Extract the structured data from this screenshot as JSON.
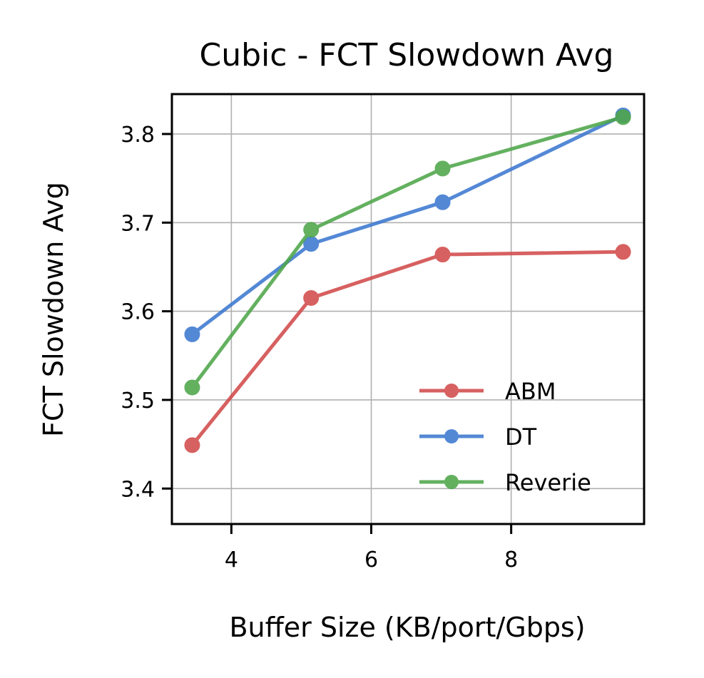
{
  "chart_data": {
    "type": "line",
    "title": "Cubic - FCT Slowdown Avg",
    "xlabel": "Buffer Size (KB/port/Gbps)",
    "ylabel": "FCT Slowdown Avg",
    "xlim": [
      3.15,
      9.9
    ],
    "ylim": [
      3.36,
      3.845
    ],
    "xticks": [
      4,
      6,
      8
    ],
    "yticks": [
      3.4,
      3.5,
      3.6,
      3.7,
      3.8
    ],
    "xtick_labels": [
      "4",
      "6",
      "8"
    ],
    "ytick_labels": [
      "3.4",
      "3.5",
      "3.6",
      "3.7",
      "3.8"
    ],
    "grid": true,
    "legend_position": "lower-right",
    "series": [
      {
        "name": "ABM",
        "color": "#d24b4b",
        "x": [
          3.44,
          5.14,
          7.02,
          9.6
        ],
        "y": [
          3.449,
          3.615,
          3.664,
          3.667
        ]
      },
      {
        "name": "DT",
        "color": "#3c78d0",
        "x": [
          3.44,
          5.14,
          7.02,
          9.6
        ],
        "y": [
          3.574,
          3.676,
          3.723,
          3.821
        ]
      },
      {
        "name": "Reverie",
        "color": "#4ea64a",
        "x": [
          3.44,
          5.14,
          7.02,
          9.6
        ],
        "y": [
          3.514,
          3.692,
          3.761,
          3.819
        ]
      }
    ]
  }
}
